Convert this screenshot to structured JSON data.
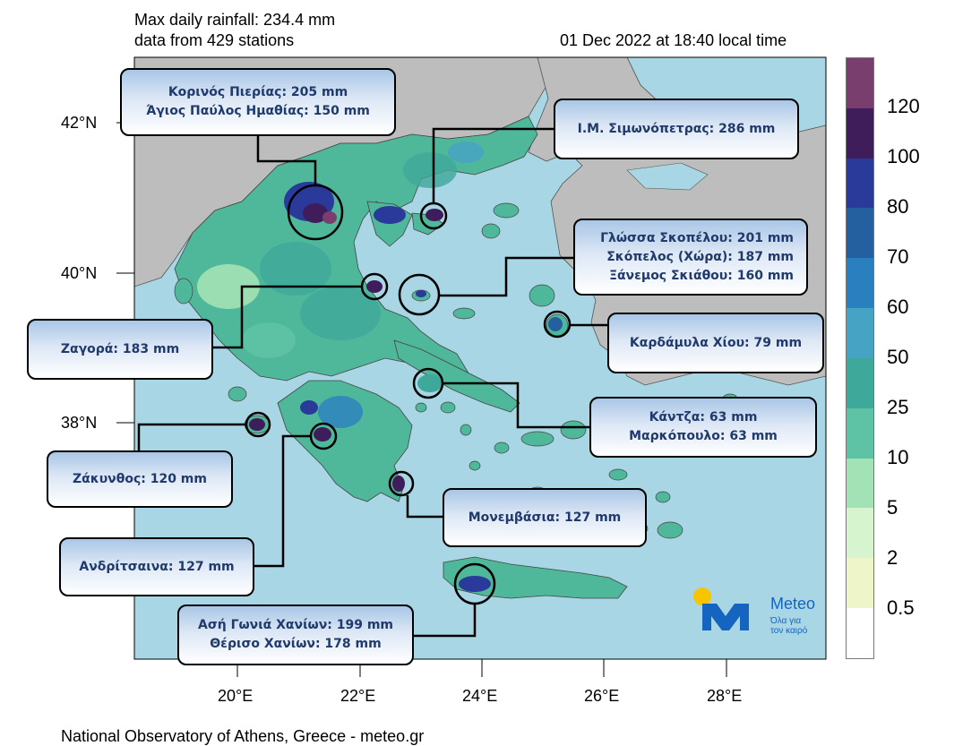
{
  "header": {
    "max_rainfall": "Max daily rainfall: 234.4 mm",
    "stations": "data from 429 stations",
    "datetime": "01 Dec 2022 at 18:40 local time"
  },
  "footer": "National Observatory of Athens, Greece - meteo.gr",
  "axes": {
    "lat_ticks": [
      "42°N",
      "40°N",
      "38°N"
    ],
    "lon_ticks": [
      "20°E",
      "22°E",
      "24°E",
      "26°E",
      "28°E"
    ]
  },
  "legend": {
    "labels": [
      "120",
      "100",
      "80",
      "70",
      "60",
      "50",
      "25",
      "10",
      "5",
      "2",
      "0.5"
    ],
    "colors": [
      "#7a3e6e",
      "#3f1c5a",
      "#2a3a9a",
      "#2460a0",
      "#2a80bf",
      "#46a3c4",
      "#3ea89a",
      "#5ec2a4",
      "#a2e2b4",
      "#d6f5cf",
      "#eef5c8",
      "#ffffff"
    ]
  },
  "callouts": [
    {
      "lines": [
        "Κορινός Πιερίας: 205 mm",
        "Άγιος Παύλος Ημαθίας: 150 mm"
      ]
    },
    {
      "lines": [
        "Ι.Μ. Σιμωνόπετρας: 286 mm"
      ]
    },
    {
      "lines": [
        "Γλώσσα Σκοπέλου: 201 mm",
        "Σκόπελος (Χώρα): 187 mm",
        "Ξάνεμος Σκιάθου: 160 mm"
      ]
    },
    {
      "lines": [
        "Καρδάμυλα Χίου: 79 mm"
      ]
    },
    {
      "lines": [
        "Ζαγορά: 183 mm"
      ]
    },
    {
      "lines": [
        "Κάντζα: 63 mm",
        "Μαρκόπουλο: 63 mm"
      ]
    },
    {
      "lines": [
        "Ζάκυνθος: 120 mm"
      ]
    },
    {
      "lines": [
        "Μονεμβάσια: 127 mm"
      ]
    },
    {
      "lines": [
        "Ανδρίτσαινα: 127 mm"
      ]
    },
    {
      "lines": [
        "Ασή Γωνιά Χανίων: 199 mm",
        "Θέρισο Χανίων: 178 mm"
      ]
    }
  ],
  "logo": {
    "name": "Meteo",
    "tagline_1": "Όλα για",
    "tagline_2": "τον καιρό"
  },
  "colors": {
    "sea": "#a8d6e4",
    "land_outside": "#bdbdbd",
    "accent_logo": "#1565c0",
    "sun": "#f7c400"
  }
}
